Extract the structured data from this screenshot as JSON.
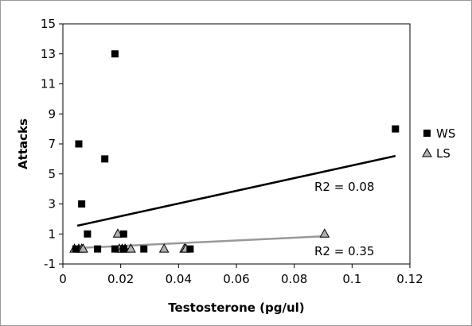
{
  "chart_data": {
    "type": "scatter",
    "title": "",
    "xlabel": "Testosterone (pg/ul)",
    "ylabel": "Attacks",
    "xlim": [
      0,
      0.12
    ],
    "ylim": [
      -1,
      15
    ],
    "xticks": [
      0,
      0.02,
      0.04,
      0.06,
      0.08,
      0.1,
      0.12
    ],
    "xtick_labels": [
      "0",
      "0.02",
      "0.04",
      "0.06",
      "0.08",
      "0.1",
      "0.12"
    ],
    "yticks": [
      -1,
      1,
      3,
      5,
      7,
      9,
      11,
      13,
      15
    ],
    "ytick_labels": [
      "-1",
      "1",
      "3",
      "5",
      "7",
      "9",
      "11",
      "13",
      "15"
    ],
    "grid": false,
    "legend_position": "right",
    "series": [
      {
        "name": "WS",
        "marker": "square",
        "color": "#000000",
        "points": [
          {
            "x": 0.0045,
            "y": 0
          },
          {
            "x": 0.0055,
            "y": 7
          },
          {
            "x": 0.0065,
            "y": 3
          },
          {
            "x": 0.0085,
            "y": 1
          },
          {
            "x": 0.012,
            "y": 0
          },
          {
            "x": 0.0145,
            "y": 6
          },
          {
            "x": 0.018,
            "y": 13
          },
          {
            "x": 0.018,
            "y": 0
          },
          {
            "x": 0.021,
            "y": 1
          },
          {
            "x": 0.021,
            "y": 0
          },
          {
            "x": 0.028,
            "y": 0
          },
          {
            "x": 0.044,
            "y": 0
          },
          {
            "x": 0.115,
            "y": 8
          }
        ],
        "trendline": {
          "x": [
            0.005,
            0.115
          ],
          "y": [
            1.55,
            6.2
          ],
          "color": "#000000",
          "label": "R2 = 0.08"
        }
      },
      {
        "name": "LS",
        "marker": "triangle",
        "color": "#b0b0b0",
        "points": [
          {
            "x": 0.004,
            "y": 0
          },
          {
            "x": 0.0055,
            "y": 0
          },
          {
            "x": 0.0065,
            "y": 0
          },
          {
            "x": 0.007,
            "y": 0
          },
          {
            "x": 0.019,
            "y": 1
          },
          {
            "x": 0.0195,
            "y": 0
          },
          {
            "x": 0.0205,
            "y": 0
          },
          {
            "x": 0.0215,
            "y": 0
          },
          {
            "x": 0.0235,
            "y": 0
          },
          {
            "x": 0.035,
            "y": 0
          },
          {
            "x": 0.042,
            "y": 0
          },
          {
            "x": 0.0425,
            "y": 0
          },
          {
            "x": 0.0905,
            "y": 1
          }
        ],
        "trendline": {
          "x": [
            0.004,
            0.0905
          ],
          "y": [
            0.05,
            0.85
          ],
          "color": "#999999",
          "label": "R2 = 0.35"
        }
      }
    ]
  }
}
